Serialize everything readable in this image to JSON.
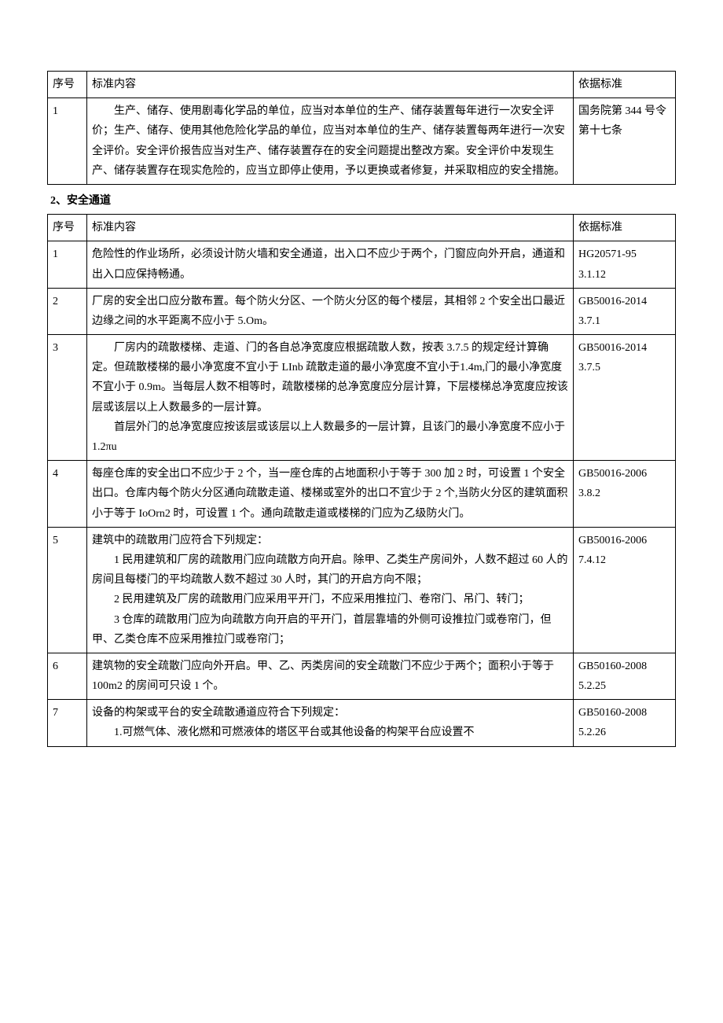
{
  "table1": {
    "headers": {
      "seq": "序号",
      "content": "标准内容",
      "basis": "依据标准"
    },
    "rows": [
      {
        "seq": "1",
        "content_lines": [
          "生产、储存、使用剧毒化学品的单位，应当对本单位的生产、储存装置每年进行一次安全评价；生产、储存、使用其他危险化学品的单位，应当对本单位的生产、储存装置每两年进行一次安全评价。安全评价报告应当对生产、储存装置存在的安全问题提出整改方案。安全评价中发现生产、储存装置存在现实危险的，应当立即停止使用，予以更换或者修复，并采取相应的安全措施。"
        ],
        "basis_lines": [
          "国务院第 344 号令",
          "第十七条"
        ]
      }
    ]
  },
  "section2_title": "2、安全通道",
  "table2": {
    "headers": {
      "seq": "序号",
      "content": "标准内容",
      "basis": "依据标准"
    },
    "rows": [
      {
        "seq": "1",
        "content_lines": [
          "危险性的作业场所，必须设计防火墙和安全通道，出入口不应少于两个，门窗应向外开启，通道和出入口应保持畅通。"
        ],
        "basis_lines": [
          "HG20571-95",
          "3.1.12"
        ]
      },
      {
        "seq": "2",
        "content_lines": [
          "厂房的安全出口应分散布置。每个防火分区、一个防火分区的每个楼层，其相邻 2 个安全出口最近边缘之间的水平距离不应小于 5.Om。"
        ],
        "basis_lines": [
          "GB50016-2014",
          "3.7.1"
        ]
      },
      {
        "seq": "3",
        "content_lines": [
          "厂房内的疏散楼梯、走道、门的各自总净宽度应根据疏散人数，按表 3.7.5 的规定经计算确定。但疏散楼梯的最小净宽度不宜小于 LInb 疏散走道的最小净宽度不宜小于1.4m,门的最小净宽度不宜小于 0.9m。当每层人数不相等时，疏散楼梯的总净宽度应分层计算，下层楼梯总净宽度应按该层或该层以上人数最多的一层计算。",
          "首层外门的总净宽度应按该层或该层以上人数最多的一层计算，且该门的最小净宽度不应小于 1.2πu"
        ],
        "basis_lines": [
          "GB50016-2014",
          "3.7.5"
        ]
      },
      {
        "seq": "4",
        "content_lines": [
          "每座仓库的安全出口不应少于 2 个，当一座仓库的占地面积小于等于 300 加 2 时，可设置 1 个安全出口。仓库内每个防火分区通向疏散走道、楼梯或室外的出口不宜少于 2 个,当防火分区的建筑面积小于等于 IoOrn2 时，可设置 1 个。通向疏散走道或楼梯的门应为乙级防火门。"
        ],
        "basis_lines": [
          "GB50016-2006",
          "3.8.2"
        ]
      },
      {
        "seq": "5",
        "content_lines": [
          "建筑中的疏散用门应符合下列规定：",
          "1 民用建筑和厂房的疏散用门应向疏散方向开启。除甲、乙类生产房间外，人数不超过 60 人的房间且每楼门的平均疏散人数不超过 30 人时，其门的开启方向不限；",
          "2 民用建筑及厂房的疏散用门应采用平开门，不应采用推拉门、卷帘门、吊门、转门；",
          "3 仓库的疏散用门应为向疏散方向开启的平开门，首层靠墙的外侧可设推拉门或卷帘门，但甲、乙类仓库不应采用推拉门或卷帘门；"
        ],
        "basis_lines": [
          "GB50016-2006",
          "7.4.12"
        ]
      },
      {
        "seq": "6",
        "content_lines": [
          "建筑物的安全疏散门应向外开启。甲、乙、丙类房间的安全疏散门不应少于两个；面积小于等于 100m2 的房间可只设 1 个。"
        ],
        "basis_lines": [
          "GB50160-2008",
          "5.2.25"
        ]
      },
      {
        "seq": "7",
        "content_lines": [
          "设备的构架或平台的安全疏散通道应符合下列规定：",
          "1.可燃气体、液化燃和可燃液体的塔区平台或其他设备的构架平台应设置不"
        ],
        "basis_lines": [
          "GB50160-2008",
          "5.2.26"
        ]
      }
    ]
  }
}
